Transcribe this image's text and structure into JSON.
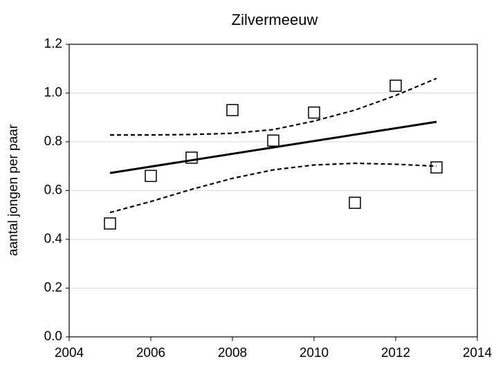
{
  "chart_data": {
    "type": "scatter",
    "title": "Zilvermeeuw",
    "y_label": "aantal jongen per paar",
    "xlim": [
      2004,
      2014
    ],
    "xticks": [
      2004,
      2006,
      2008,
      2010,
      2012,
      2014
    ],
    "ylim": [
      0,
      1.2
    ],
    "yticks": [
      {
        "value": 0,
        "label": "0.0"
      },
      0.2,
      0.4,
      0.6,
      0.8,
      {
        "value": 1,
        "label": "1.0"
      },
      1.2
    ],
    "grid": true,
    "series": [
      {
        "style": "markers",
        "marker": "square",
        "color": "#000000",
        "x": [
          2005,
          2006,
          2007,
          2008,
          2009,
          2010,
          2011,
          2012,
          2013
        ],
        "values": [
          0.465,
          0.66,
          0.735,
          0.93,
          0.805,
          0.92,
          0.55,
          1.03,
          0.695
        ]
      },
      {
        "style": "solid",
        "color": "#000000",
        "x": [
          2005,
          2013
        ],
        "values": [
          0.672,
          0.882
        ]
      },
      {
        "style": "dashed",
        "color": "#000000",
        "x": [
          2005,
          2006,
          2007,
          2008,
          2009,
          2010,
          2011,
          2012,
          2013
        ],
        "values": [
          0.828,
          0.828,
          0.83,
          0.835,
          0.85,
          0.885,
          0.93,
          0.99,
          1.06
        ]
      },
      {
        "style": "dashed",
        "color": "#000000",
        "x": [
          2005,
          2006,
          2007,
          2008,
          2009,
          2010,
          2011,
          2012,
          2013
        ],
        "values": [
          0.51,
          0.555,
          0.605,
          0.65,
          0.685,
          0.705,
          0.712,
          0.708,
          0.7
        ]
      }
    ]
  }
}
